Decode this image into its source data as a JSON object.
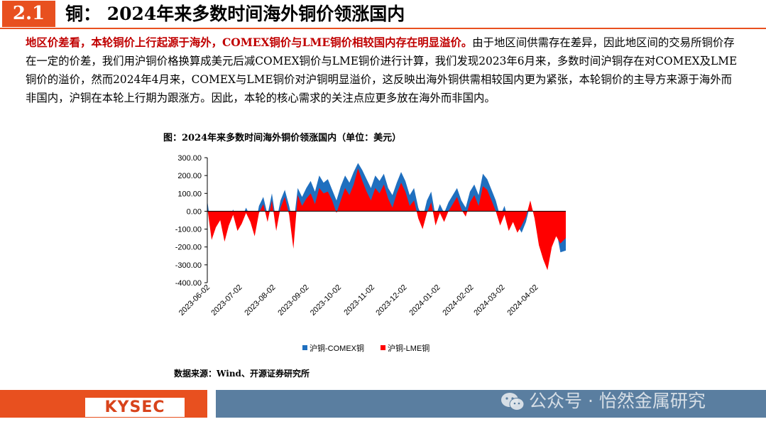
{
  "header": {
    "section_number": "2.1",
    "title": "铜：  2024年来多数时间海外铜价领涨国内"
  },
  "body": {
    "lead": "地区价差看，本轮铜价上行起源于海外，COMEX铜价与LME铜价相较国内存在明显溢价。",
    "rest": "由于地区间供需存在差异，因此地区间的交易所铜价存在一定的价差，我们用沪铜价格换算成美元后减COMEX铜价与LME铜价进行计算，我们发现2023年6月来，多数时间沪铜存在对COMEX及LME铜价的溢价，然而2024年4月来，COMEX与LME铜价对沪铜明显溢价，这反映出海外铜供需相较国内更为紧张，本轮铜价的主导方来源于海外而非国内，沪铜在本轮上行期为跟涨方。因此，本轮的核心需求的关注点应更多放在海外而非国内。"
  },
  "chart_title": "图：2024年来多数时间海外铜价领涨国内（单位：美元）",
  "source": "数据来源：Wind、开源证券研究所",
  "footer": {
    "logo": "KYSEC",
    "watermark": "公众号 · 怡然金属研究"
  },
  "colors": {
    "accent": "#e8501f",
    "series_comex": "#1f6fbf",
    "series_lme": "#ff0000",
    "footer_bar": "#5a7ea0"
  },
  "chart_data": {
    "type": "area",
    "title": "图：2024年来多数时间海外铜价领涨国内（单位：美元）",
    "ylim": [
      -400,
      300
    ],
    "yticks": [
      "300.00",
      "200.00",
      "100.00",
      "0.00",
      "-100.00",
      "-200.00",
      "-300.00",
      "-400.00"
    ],
    "xticks": [
      "2023-06-02",
      "2023-07-02",
      "2023-08-02",
      "2023-09-02",
      "2023-10-02",
      "2023-11-02",
      "2023-12-02",
      "2024-01-02",
      "2024-02-02",
      "2024-03-02",
      "2024-04-02"
    ],
    "legend": [
      "沪铜-COMEX铜",
      "沪铜-LME铜"
    ],
    "legend_position": "bottom",
    "x_start": "2023-06-02",
    "x_end": "2024-04-30",
    "series": [
      {
        "name": "沪铜-COMEX铜",
        "points": [
          [
            "2023-06-02",
            60
          ],
          [
            "2023-06-06",
            -120
          ],
          [
            "2023-06-10",
            -60
          ],
          [
            "2023-06-14",
            -20
          ],
          [
            "2023-06-18",
            -140
          ],
          [
            "2023-06-22",
            -50
          ],
          [
            "2023-06-26",
            10
          ],
          [
            "2023-06-30",
            -80
          ],
          [
            "2023-07-04",
            -40
          ],
          [
            "2023-07-08",
            20
          ],
          [
            "2023-07-12",
            -30
          ],
          [
            "2023-07-16",
            -100
          ],
          [
            "2023-07-20",
            30
          ],
          [
            "2023-07-24",
            80
          ],
          [
            "2023-07-28",
            -20
          ],
          [
            "2023-08-01",
            100
          ],
          [
            "2023-08-05",
            -60
          ],
          [
            "2023-08-09",
            60
          ],
          [
            "2023-08-13",
            120
          ],
          [
            "2023-08-17",
            30
          ],
          [
            "2023-08-21",
            -80
          ],
          [
            "2023-08-25",
            130
          ],
          [
            "2023-08-29",
            80
          ],
          [
            "2023-09-02",
            130
          ],
          [
            "2023-09-06",
            170
          ],
          [
            "2023-09-10",
            110
          ],
          [
            "2023-09-14",
            200
          ],
          [
            "2023-09-18",
            160
          ],
          [
            "2023-09-22",
            180
          ],
          [
            "2023-09-26",
            120
          ],
          [
            "2023-09-30",
            60
          ],
          [
            "2023-10-04",
            140
          ],
          [
            "2023-10-08",
            200
          ],
          [
            "2023-10-12",
            160
          ],
          [
            "2023-10-16",
            220
          ],
          [
            "2023-10-20",
            270
          ],
          [
            "2023-10-24",
            230
          ],
          [
            "2023-10-28",
            180
          ],
          [
            "2023-11-01",
            130
          ],
          [
            "2023-11-05",
            200
          ],
          [
            "2023-11-09",
            170
          ],
          [
            "2023-11-13",
            210
          ],
          [
            "2023-11-17",
            130
          ],
          [
            "2023-11-21",
            90
          ],
          [
            "2023-11-25",
            160
          ],
          [
            "2023-11-29",
            220
          ],
          [
            "2023-12-03",
            170
          ],
          [
            "2023-12-07",
            90
          ],
          [
            "2023-12-11",
            130
          ],
          [
            "2023-12-15",
            20
          ],
          [
            "2023-12-19",
            -40
          ],
          [
            "2023-12-23",
            60
          ],
          [
            "2023-12-27",
            110
          ],
          [
            "2023-12-31",
            -30
          ],
          [
            "2024-01-04",
            40
          ],
          [
            "2024-01-08",
            -10
          ],
          [
            "2024-01-12",
            50
          ],
          [
            "2024-01-16",
            90
          ],
          [
            "2024-01-20",
            130
          ],
          [
            "2024-01-24",
            60
          ],
          [
            "2024-01-28",
            20
          ],
          [
            "2024-02-01",
            110
          ],
          [
            "2024-02-05",
            150
          ],
          [
            "2024-02-09",
            90
          ],
          [
            "2024-02-13",
            210
          ],
          [
            "2024-02-17",
            180
          ],
          [
            "2024-02-21",
            120
          ],
          [
            "2024-02-25",
            60
          ],
          [
            "2024-02-29",
            -30
          ],
          [
            "2024-03-04",
            30
          ],
          [
            "2024-03-08",
            -60
          ],
          [
            "2024-03-12",
            -20
          ],
          [
            "2024-03-16",
            -80
          ],
          [
            "2024-03-20",
            -120
          ],
          [
            "2024-03-24",
            -60
          ],
          [
            "2024-03-28",
            40
          ],
          [
            "2024-04-01",
            -20
          ],
          [
            "2024-04-05",
            -160
          ],
          [
            "2024-04-09",
            -230
          ],
          [
            "2024-04-13",
            -290
          ],
          [
            "2024-04-17",
            -150
          ],
          [
            "2024-04-21",
            -100
          ],
          [
            "2024-04-25",
            -230
          ],
          [
            "2024-04-30",
            -220
          ]
        ]
      },
      {
        "name": "沪铜-LME铜",
        "points": [
          [
            "2023-06-02",
            20
          ],
          [
            "2023-06-06",
            -160
          ],
          [
            "2023-06-10",
            -90
          ],
          [
            "2023-06-14",
            -50
          ],
          [
            "2023-06-18",
            -170
          ],
          [
            "2023-06-22",
            -80
          ],
          [
            "2023-06-26",
            -20
          ],
          [
            "2023-06-30",
            -110
          ],
          [
            "2023-07-04",
            -70
          ],
          [
            "2023-07-08",
            -10
          ],
          [
            "2023-07-12",
            -60
          ],
          [
            "2023-07-16",
            -140
          ],
          [
            "2023-07-20",
            -10
          ],
          [
            "2023-07-24",
            40
          ],
          [
            "2023-07-28",
            -60
          ],
          [
            "2023-08-01",
            60
          ],
          [
            "2023-08-05",
            -110
          ],
          [
            "2023-08-09",
            20
          ],
          [
            "2023-08-13",
            80
          ],
          [
            "2023-08-17",
            -20
          ],
          [
            "2023-08-21",
            -210
          ],
          [
            "2023-08-25",
            90
          ],
          [
            "2023-08-29",
            30
          ],
          [
            "2023-09-02",
            70
          ],
          [
            "2023-09-06",
            100
          ],
          [
            "2023-09-10",
            40
          ],
          [
            "2023-09-14",
            130
          ],
          [
            "2023-09-18",
            100
          ],
          [
            "2023-09-22",
            110
          ],
          [
            "2023-09-26",
            60
          ],
          [
            "2023-09-30",
            -10
          ],
          [
            "2023-10-04",
            60
          ],
          [
            "2023-10-08",
            130
          ],
          [
            "2023-10-12",
            90
          ],
          [
            "2023-10-16",
            150
          ],
          [
            "2023-10-20",
            240
          ],
          [
            "2023-10-24",
            170
          ],
          [
            "2023-10-28",
            110
          ],
          [
            "2023-11-01",
            60
          ],
          [
            "2023-11-05",
            130
          ],
          [
            "2023-11-09",
            100
          ],
          [
            "2023-11-13",
            150
          ],
          [
            "2023-11-17",
            70
          ],
          [
            "2023-11-21",
            20
          ],
          [
            "2023-11-25",
            100
          ],
          [
            "2023-11-29",
            160
          ],
          [
            "2023-12-03",
            110
          ],
          [
            "2023-12-07",
            30
          ],
          [
            "2023-12-11",
            60
          ],
          [
            "2023-12-15",
            -40
          ],
          [
            "2023-12-19",
            -100
          ],
          [
            "2023-12-23",
            -10
          ],
          [
            "2023-12-27",
            50
          ],
          [
            "2023-12-31",
            -80
          ],
          [
            "2024-01-04",
            -10
          ],
          [
            "2024-01-08",
            -60
          ],
          [
            "2024-01-12",
            0
          ],
          [
            "2024-01-16",
            40
          ],
          [
            "2024-01-20",
            80
          ],
          [
            "2024-01-24",
            10
          ],
          [
            "2024-01-28",
            -30
          ],
          [
            "2024-02-01",
            50
          ],
          [
            "2024-02-05",
            90
          ],
          [
            "2024-02-09",
            30
          ],
          [
            "2024-02-13",
            140
          ],
          [
            "2024-02-17",
            120
          ],
          [
            "2024-02-21",
            60
          ],
          [
            "2024-02-25",
            0
          ],
          [
            "2024-02-29",
            -80
          ],
          [
            "2024-03-04",
            -20
          ],
          [
            "2024-03-08",
            -110
          ],
          [
            "2024-03-12",
            -60
          ],
          [
            "2024-03-16",
            -120
          ],
          [
            "2024-03-20",
            -80
          ],
          [
            "2024-03-24",
            -30
          ],
          [
            "2024-03-28",
            60
          ],
          [
            "2024-04-01",
            -40
          ],
          [
            "2024-04-05",
            -190
          ],
          [
            "2024-04-09",
            -270
          ],
          [
            "2024-04-13",
            -330
          ],
          [
            "2024-04-17",
            -200
          ],
          [
            "2024-04-21",
            -140
          ],
          [
            "2024-04-25",
            -180
          ],
          [
            "2024-04-30",
            -150
          ]
        ]
      }
    ]
  }
}
